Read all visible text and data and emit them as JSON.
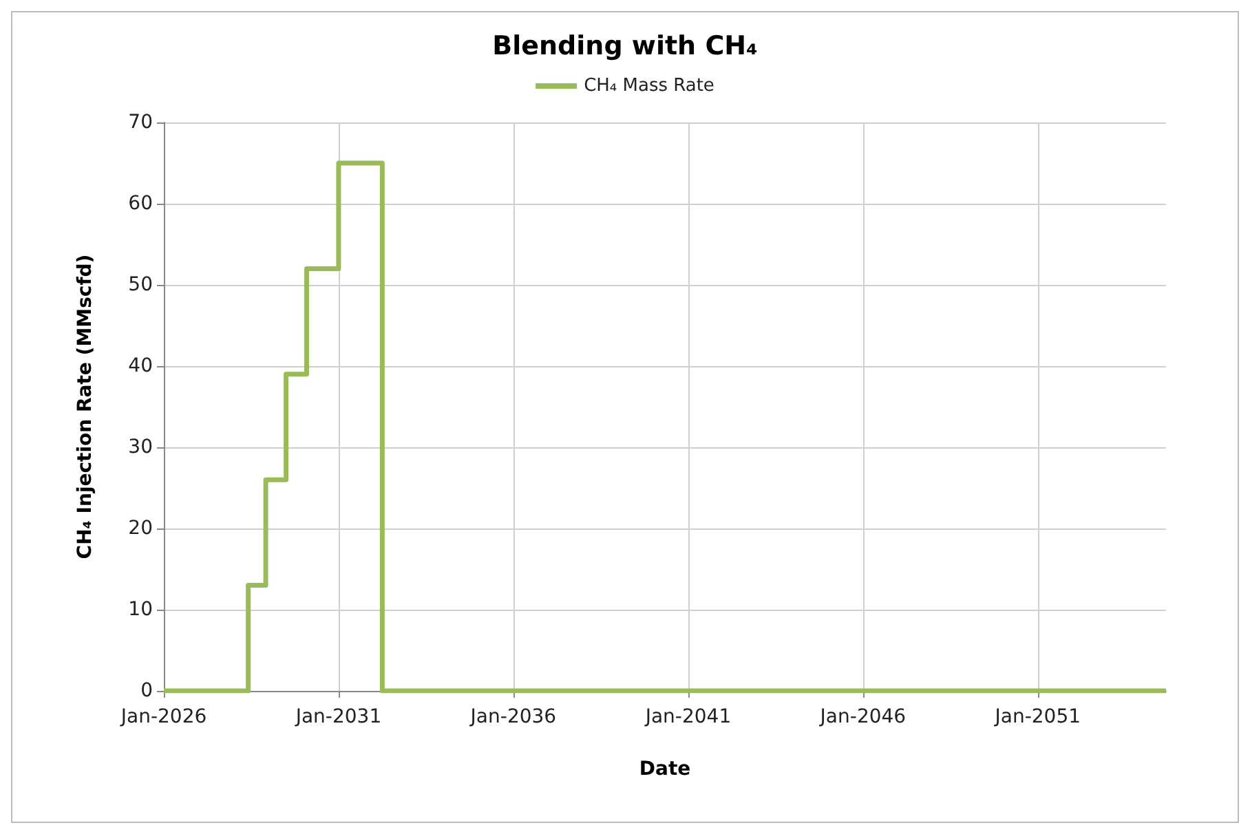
{
  "chart_data": {
    "type": "step",
    "title": "Blending with CH₄",
    "xlabel": "Date",
    "ylabel": "CH₄ Injection Rate (MMscfd)",
    "series": [
      {
        "name": "CH₄ Mass Rate",
        "color": "#9bbb59",
        "x": [
          "2026-01",
          "2028-06",
          "2028-12",
          "2029-07",
          "2030-02",
          "2031-01",
          "2032-04",
          "2054-09"
        ],
        "values": [
          0,
          13,
          26,
          39,
          52,
          65,
          0,
          0
        ]
      }
    ],
    "xlim": [
      "2026-01",
      "2054-09"
    ],
    "xticks": [
      {
        "value": "2026-01",
        "label": "Jan-2026"
      },
      {
        "value": "2031-01",
        "label": "Jan-2031"
      },
      {
        "value": "2036-01",
        "label": "Jan-2036"
      },
      {
        "value": "2041-01",
        "label": "Jan-2041"
      },
      {
        "value": "2046-01",
        "label": "Jan-2046"
      },
      {
        "value": "2051-01",
        "label": "Jan-2051"
      }
    ],
    "ylim": [
      0,
      70
    ],
    "yticks": [
      0,
      10,
      20,
      30,
      40,
      50,
      60,
      70
    ],
    "grid": true,
    "legend": "top",
    "marker": "none",
    "line_style": "solid"
  }
}
